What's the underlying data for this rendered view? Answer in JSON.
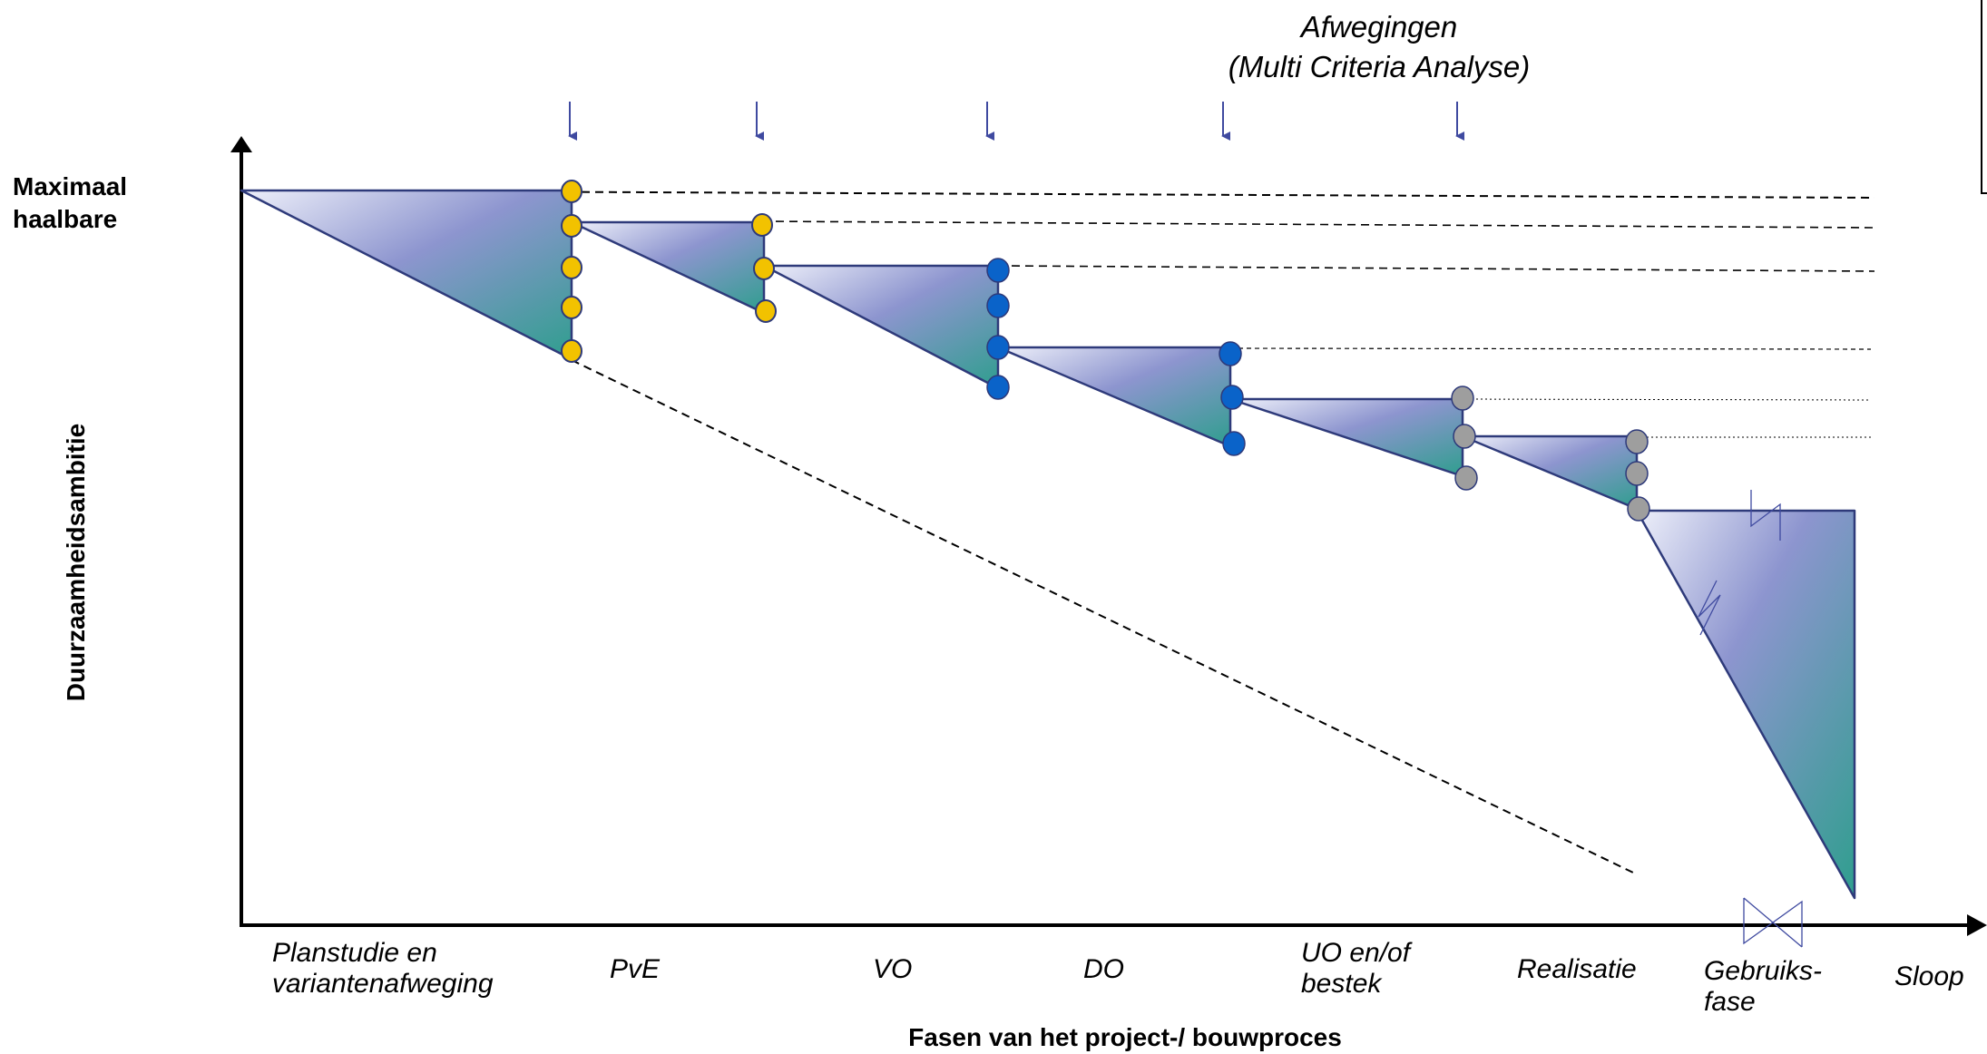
{
  "title": {
    "line1": "Afwegingen",
    "line2": "(Multi Criteria Analyse)"
  },
  "y_axis": {
    "top_label": "Maximaal\nhaalbare",
    "label": "Duurzaamheidsambitie"
  },
  "x_axis": {
    "label": "Fasen van het project-/ bouwproces"
  },
  "phases": [
    "Planstudie en\nvariantenafweging",
    "PvE",
    "VO",
    "DO",
    "UO en/of\nbestek",
    "Realisatie",
    "Gebruiks-\nfase",
    "Sloop"
  ],
  "colors": {
    "triangle_light": "#e6e9f6",
    "triangle_mid": "#8a93cc",
    "triangle_dark": "#2f9e8e",
    "outline": "#2e3a7a",
    "arrow": "#3f4aa0",
    "dot_yellow": "#f2c200",
    "dot_blue": "#0a63c9",
    "dot_gray": "#9e9e9e"
  },
  "icons": {
    "decision_arrow": "down-arrow-icon",
    "decision_point": "circle-dot",
    "axis_break": "z-break-icon"
  }
}
